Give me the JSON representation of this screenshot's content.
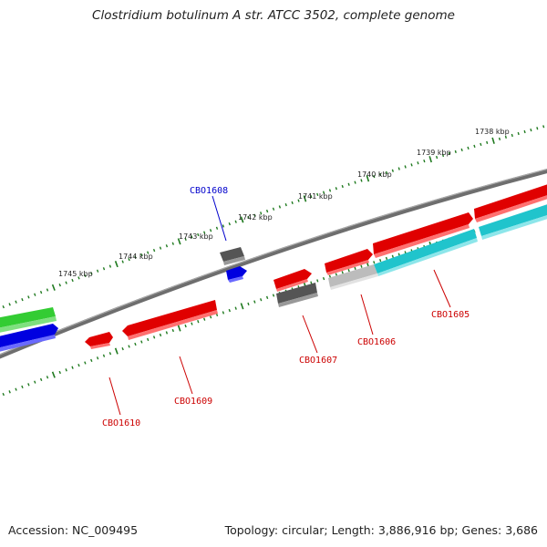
{
  "title": "Clostridium botulinum A str. ATCC 3502, complete genome",
  "footer": {
    "accession": "Accession: NC_009495",
    "summary": "Topology: circular; Length: 3,886,916 bp; Genes: 3,686"
  },
  "colors": {
    "backbone": "#7a7a7a",
    "tick": "#1f7a1f",
    "forward_red": "#e00000",
    "reverse_red": "#e00000",
    "rna_gray": "#5a5a5a",
    "cyan": "#20c4cc",
    "blue": "#0000e0",
    "green": "#33cc33",
    "label_red": "#cc0000",
    "label_blue": "#0000cc"
  },
  "ticks": {
    "labels": [
      "1738 kbp",
      "1739 kbp",
      "1740 kbp",
      "1741 kbp",
      "1742 kbp",
      "1743 kbp",
      "1744 kbp",
      "1745 kbp"
    ]
  },
  "genes": [
    {
      "name": "CBO1605",
      "color": "red"
    },
    {
      "name": "CBO1606",
      "color": "red"
    },
    {
      "name": "CBO1607",
      "color": "red"
    },
    {
      "name": "CBO1608",
      "color": "blue"
    },
    {
      "name": "CBO1609",
      "color": "red"
    },
    {
      "name": "CBO1610",
      "color": "red"
    }
  ]
}
